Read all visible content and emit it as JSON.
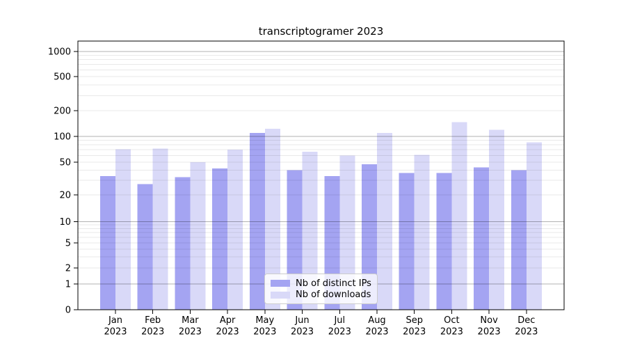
{
  "chart_data": {
    "type": "bar",
    "title": "transcriptogramer 2023",
    "categories": [
      "Jan 2023",
      "Feb 2023",
      "Mar 2023",
      "Apr 2023",
      "May 2023",
      "Jun 2023",
      "Jul 2023",
      "Aug 2023",
      "Sep 2023",
      "Oct 2023",
      "Nov 2023",
      "Dec 2023"
    ],
    "series": [
      {
        "name": "Nb of distinct IPs",
        "color": "#a4a4f2",
        "values": [
          34,
          27,
          33,
          42,
          110,
          40,
          34,
          47,
          37,
          37,
          43,
          40
        ]
      },
      {
        "name": "Nb of downloads",
        "color": "#d9d9f8",
        "values": [
          71,
          72,
          50,
          70,
          123,
          66,
          60,
          110,
          61,
          147,
          120,
          85
        ]
      }
    ],
    "xlabel": "",
    "ylabel": "",
    "yscale": "symlog",
    "yticks": [
      0,
      1,
      2,
      5,
      10,
      20,
      50,
      100,
      200,
      500,
      1000
    ],
    "ylim": [
      0,
      1300
    ],
    "grid": "both",
    "legend_position": "lower center"
  },
  "legend": {
    "items": [
      {
        "label": "Nb of distinct IPs"
      },
      {
        "label": "Nb of downloads"
      }
    ]
  },
  "colors": {
    "major_grid": "rgba(0,0,0,0.30)",
    "minor_grid": "rgba(0,0,0,0.085)",
    "spine": "#000000",
    "tick_label": "#000000",
    "background": "#ffffff"
  }
}
